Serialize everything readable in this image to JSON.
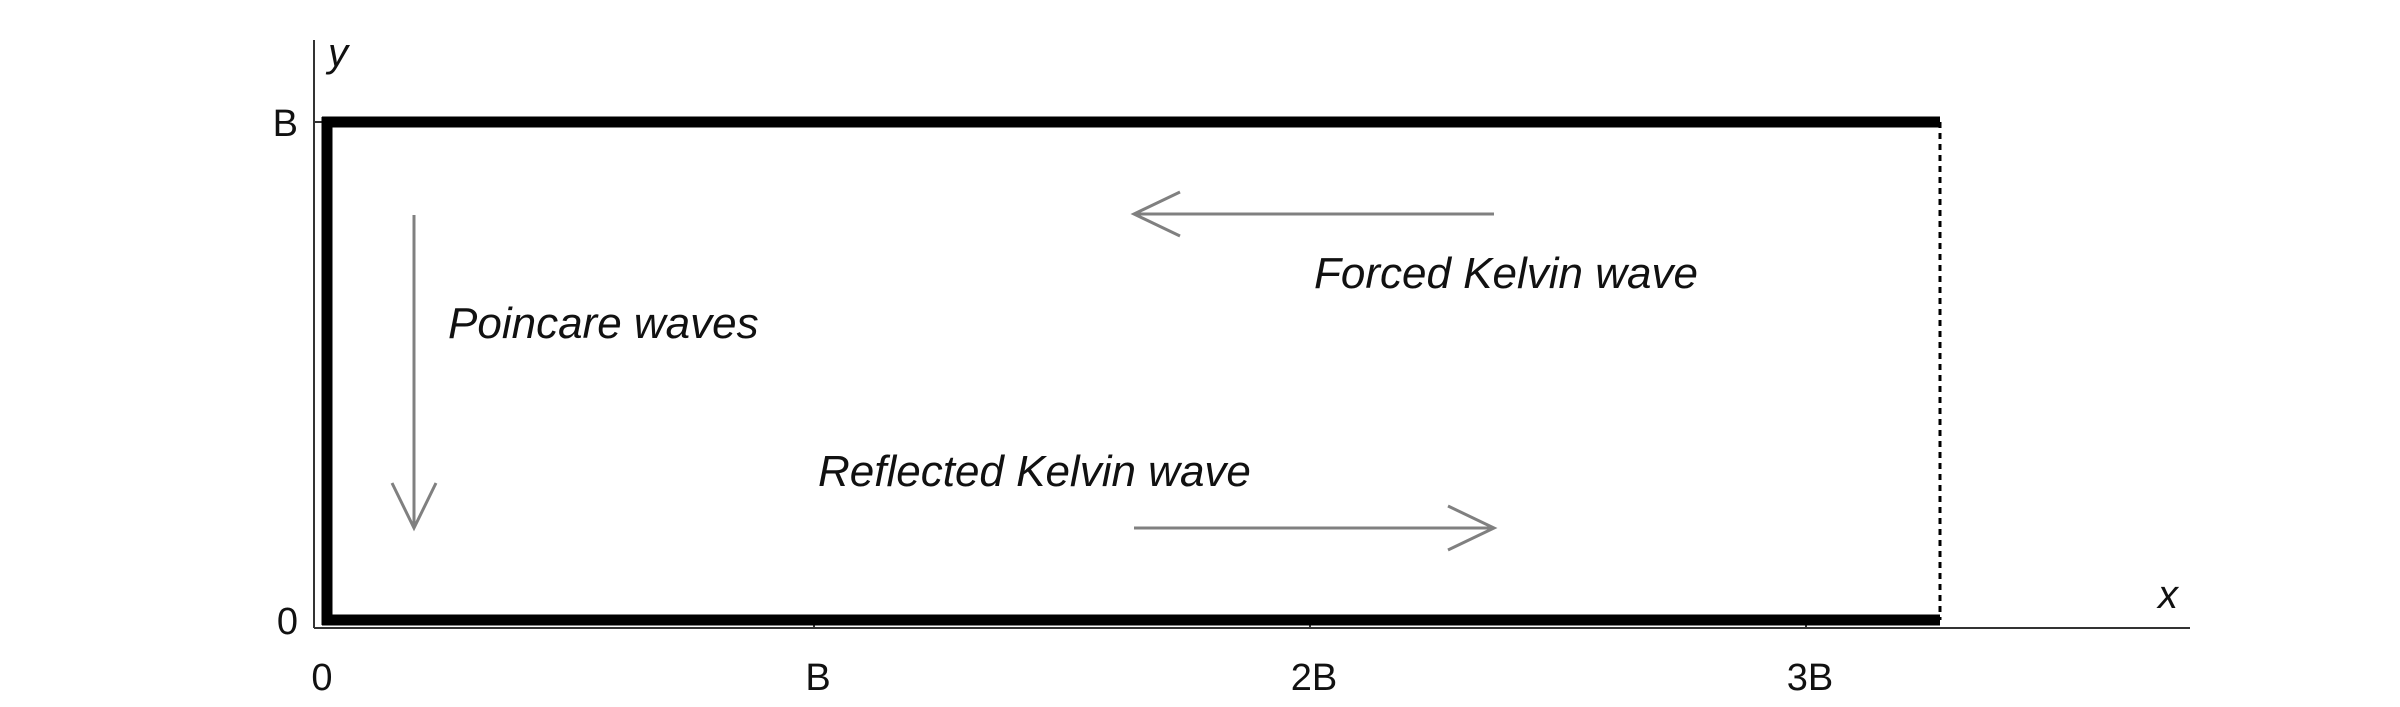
{
  "axes": {
    "x_name": "x",
    "y_name": "y",
    "x_ticks": [
      "0",
      "B",
      "2B",
      "3B"
    ],
    "y_ticks": [
      "0",
      "B"
    ]
  },
  "labels": {
    "poincare": "Poincare waves",
    "forced": "Forced Kelvin wave",
    "reflected": "Reflected Kelvin wave"
  },
  "colors": {
    "boundary": "#000000",
    "arrow": "#808080",
    "axis": "#333333"
  }
}
